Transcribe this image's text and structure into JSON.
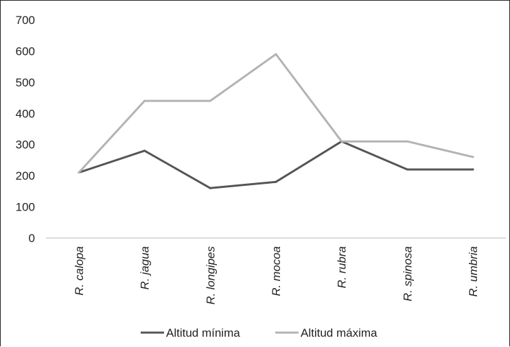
{
  "chart_data": {
    "type": "line",
    "categories": [
      "R. calopa",
      "R. jagua",
      "R. longipes",
      "R. mocoa",
      "R. rubra",
      "R. spinosa",
      "R. umbria"
    ],
    "series": [
      {
        "name": "Altitud mínima",
        "values": [
          210,
          280,
          160,
          180,
          310,
          220,
          220
        ],
        "color": "#555555"
      },
      {
        "name": "Altitud máxima",
        "values": [
          210,
          440,
          440,
          590,
          310,
          310,
          260
        ],
        "color": "#b3b3b3"
      }
    ],
    "ylim": [
      0,
      700
    ],
    "yticks": [
      "0",
      "100",
      "200",
      "300",
      "400",
      "500",
      "600",
      "700"
    ],
    "grid": false,
    "legend": "bottom"
  }
}
